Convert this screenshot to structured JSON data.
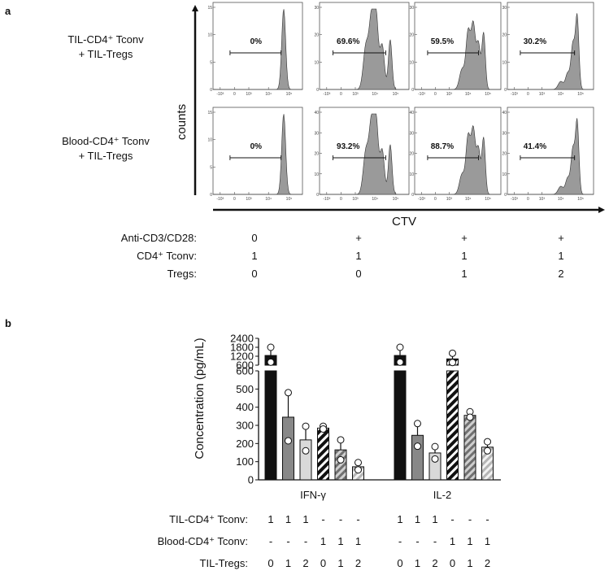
{
  "figure": {
    "panel_a_letter": "a",
    "panel_b_letter": "b"
  },
  "chart_data": [
    {
      "type": "histogram-grid",
      "panel": "a",
      "y_axis_label": "counts",
      "x_axis_label": "CTV",
      "x_tick_labels": [
        "-10³",
        "0",
        "10³",
        "10⁴",
        "10⁵"
      ],
      "rows": [
        {
          "label_line1": "TIL-CD4⁺ Tconv",
          "label_line2": "+ TIL-Tregs",
          "histograms": [
            {
              "percent": "0%",
              "y_ticks": [
                "0",
                "5",
                "10",
                "15"
              ],
              "y_max": 15,
              "profile": "single"
            },
            {
              "percent": "69.6%",
              "y_ticks": [
                "0",
                "10",
                "20",
                "30"
              ],
              "y_max": 30,
              "profile": "div-high"
            },
            {
              "percent": "59.5%",
              "y_ticks": [
                "0",
                "10",
                "20",
                "30"
              ],
              "y_max": 30,
              "profile": "div-mid"
            },
            {
              "percent": "30.2%",
              "y_ticks": [
                "0",
                "10",
                "20",
                "30"
              ],
              "y_max": 30,
              "profile": "div-low"
            }
          ]
        },
        {
          "label_line1": "Blood-CD4⁺ Tconv",
          "label_line2": "+ TIL-Tregs",
          "histograms": [
            {
              "percent": "0%",
              "y_ticks": [
                "0",
                "5",
                "10",
                "15"
              ],
              "y_max": 15,
              "profile": "single"
            },
            {
              "percent": "93.2%",
              "y_ticks": [
                "0",
                "10",
                "20",
                "30",
                "40"
              ],
              "y_max": 40,
              "profile": "div-high"
            },
            {
              "percent": "88.7%",
              "y_ticks": [
                "0",
                "10",
                "20",
                "30",
                "40"
              ],
              "y_max": 40,
              "profile": "div-mid"
            },
            {
              "percent": "41.4%",
              "y_ticks": [
                "0",
                "10",
                "20",
                "30",
                "40"
              ],
              "y_max": 40,
              "profile": "div-low"
            }
          ]
        }
      ],
      "conditions": [
        {
          "label": "Anti-CD3/CD28:",
          "values": [
            "0",
            "+",
            "+",
            "+"
          ]
        },
        {
          "label": "CD4⁺ Tconv:",
          "values": [
            "1",
            "1",
            "1",
            "1"
          ]
        },
        {
          "label": "Tregs:",
          "values": [
            "0",
            "0",
            "1",
            "2"
          ]
        }
      ]
    },
    {
      "type": "bar",
      "panel": "b",
      "ylabel": "Concentration (pg/mL)",
      "y_axis_upper_ticks": [
        "600",
        "1200",
        "1800",
        "2400"
      ],
      "y_axis_lower_ticks": [
        "0",
        "100",
        "200",
        "300",
        "400",
        "500",
        "600"
      ],
      "y_upper_range": [
        600,
        2400
      ],
      "y_lower_range": [
        0,
        600
      ],
      "groups": [
        {
          "name": "IFN-γ",
          "bars": [
            {
              "value": 1250,
              "error": 550,
              "points": [
                800
              ],
              "fill": "#111111",
              "pattern": "solid"
            },
            {
              "value": 345,
              "error": 135,
              "points": [
                215
              ],
              "fill": "#888888",
              "pattern": "solid"
            },
            {
              "value": 220,
              "error": 75,
              "points": [
                160
              ],
              "fill": "#d9d9d9",
              "pattern": "solid"
            },
            {
              "value": 285,
              "error": 10,
              "points": [
                280
              ],
              "fill": "#111111",
              "pattern": "hatch-dark"
            },
            {
              "value": 165,
              "error": 55,
              "points": [
                110
              ],
              "fill": "#888888",
              "pattern": "hatch-mid"
            },
            {
              "value": 72,
              "error": 23,
              "points": [
                55
              ],
              "fill": "#d9d9d9",
              "pattern": "hatch-light"
            }
          ]
        },
        {
          "name": "IL-2",
          "bars": [
            {
              "value": 1250,
              "error": 550,
              "points": [
                800
              ],
              "fill": "#111111",
              "pattern": "solid"
            },
            {
              "value": 245,
              "error": 65,
              "points": [
                185
              ],
              "fill": "#888888",
              "pattern": "solid"
            },
            {
              "value": 148,
              "error": 35,
              "points": [
                115
              ],
              "fill": "#d9d9d9",
              "pattern": "solid"
            },
            {
              "value": 1020,
              "error": 380,
              "points": [
                780
              ],
              "fill": "#111111",
              "pattern": "hatch-dark"
            },
            {
              "value": 355,
              "error": 20,
              "points": [
                345
              ],
              "fill": "#888888",
              "pattern": "hatch-mid"
            },
            {
              "value": 180,
              "error": 30,
              "points": [
                160
              ],
              "fill": "#d9d9d9",
              "pattern": "hatch-light"
            }
          ]
        }
      ],
      "conditions": [
        {
          "label": "TIL-CD4⁺ Tconv:",
          "values": [
            "1",
            "1",
            "1",
            "-",
            "-",
            "-",
            "1",
            "1",
            "1",
            "-",
            "-",
            "-"
          ]
        },
        {
          "label": "Blood-CD4⁺ Tconv:",
          "values": [
            "-",
            "-",
            "-",
            "1",
            "1",
            "1",
            "-",
            "-",
            "-",
            "1",
            "1",
            "1"
          ]
        },
        {
          "label": "TIL-Tregs:",
          "values": [
            "0",
            "1",
            "2",
            "0",
            "1",
            "2",
            "0",
            "1",
            "2",
            "0",
            "1",
            "2"
          ]
        }
      ]
    }
  ]
}
